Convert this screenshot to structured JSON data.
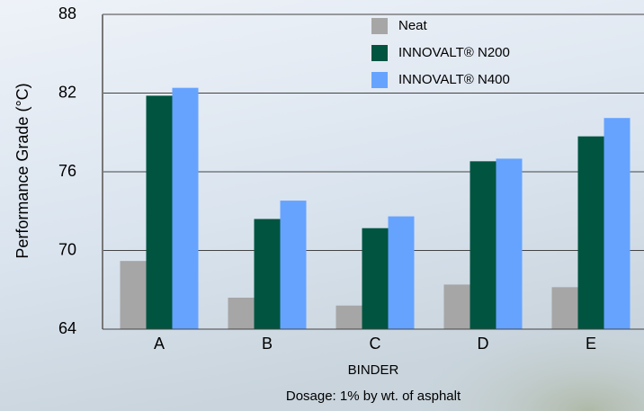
{
  "chart_data": {
    "type": "bar",
    "y_label": "Performance Grade (°C)",
    "x_label": "BINDER",
    "annotation": "Dosage:  1% by wt. of asphalt",
    "categories": [
      "A",
      "B",
      "C",
      "D",
      "E"
    ],
    "series": [
      {
        "name": "Neat",
        "color": "#a6a6a6",
        "values": [
          69.2,
          66.4,
          65.8,
          67.4,
          67.2
        ]
      },
      {
        "name": "INNOVALT® N200",
        "color": "#005440",
        "values": [
          81.8,
          72.4,
          71.7,
          76.8,
          78.7
        ]
      },
      {
        "name": "INNOVALT® N400",
        "color": "#66a3ff",
        "values": [
          82.4,
          73.8,
          72.6,
          77.0,
          80.1
        ]
      }
    ],
    "ylim": [
      64,
      88
    ],
    "yticks": [
      64,
      70,
      76,
      82,
      88
    ],
    "grid": true
  }
}
